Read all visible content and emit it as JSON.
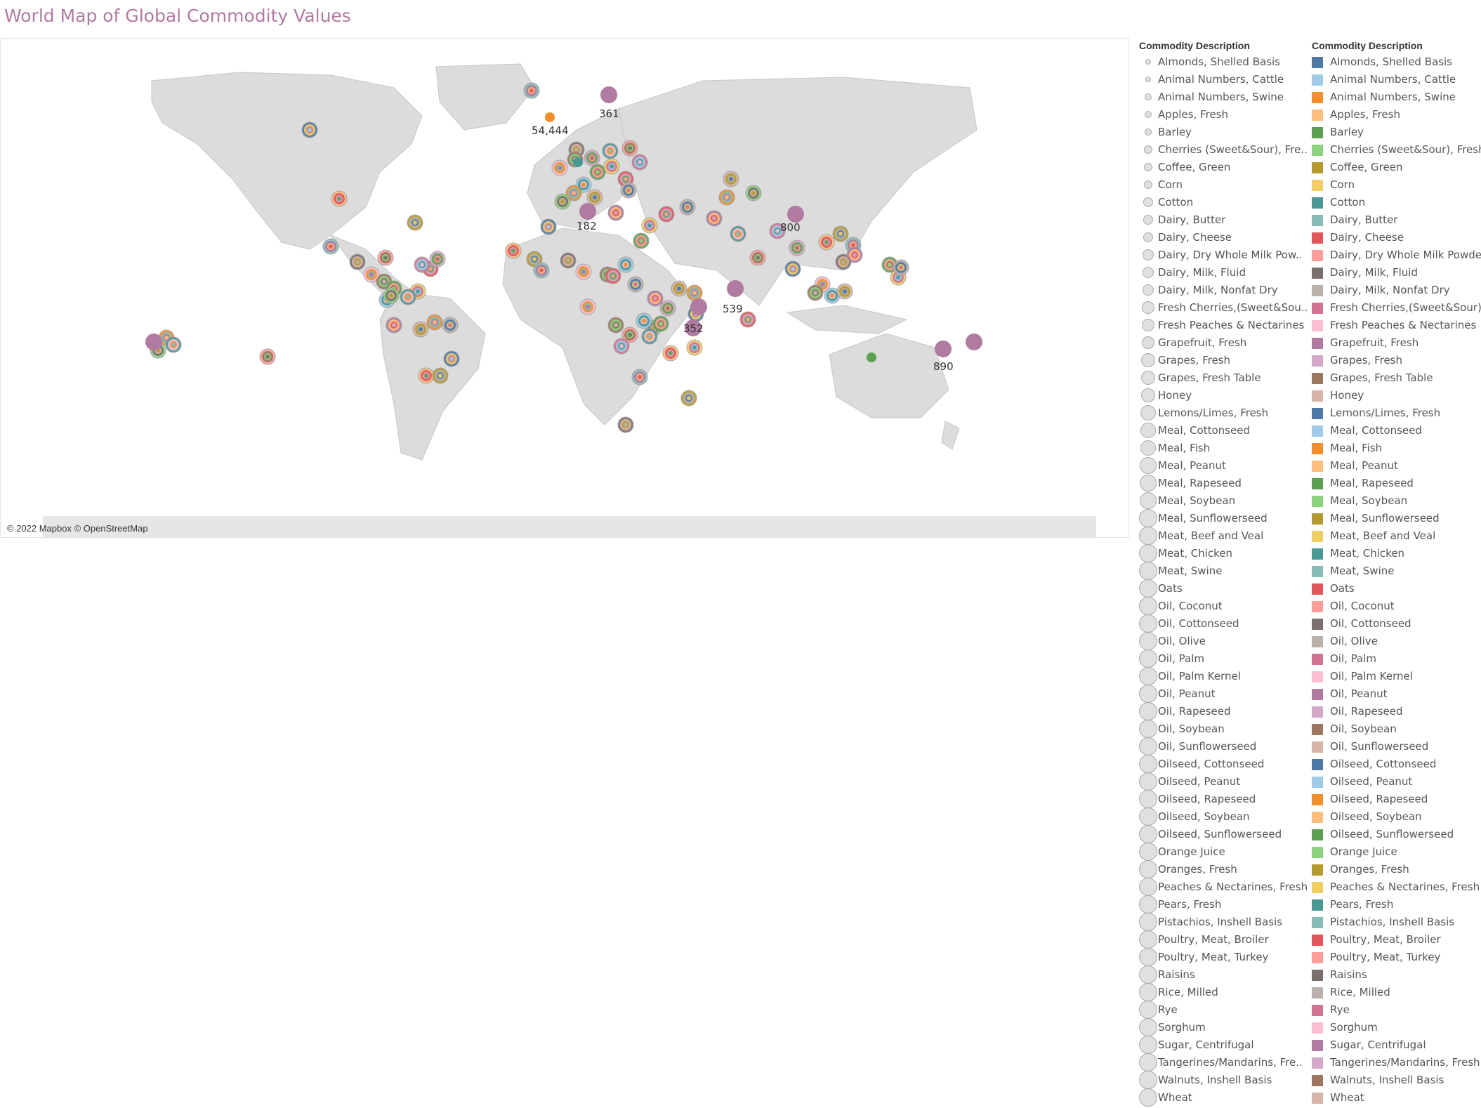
{
  "title": "World Map of Global Commodity Values",
  "attribution": "© 2022 Mapbox © OpenStreetMap",
  "map": {
    "callouts": [
      "54,444",
      "361",
      "182",
      "800",
      "539",
      "352",
      "890"
    ]
  },
  "legend": {
    "size_title": "Commodity Description",
    "color_title": "Commodity Description",
    "items": [
      {
        "label": "Almonds, Shelled Basis",
        "short": "Almonds, Shelled Basis",
        "color": "#4e79a7"
      },
      {
        "label": "Animal Numbers, Cattle",
        "short": "Animal Numbers, Cattle",
        "color": "#a0cbe8"
      },
      {
        "label": "Animal Numbers, Swine",
        "short": "Animal Numbers, Swine",
        "color": "#f28e2b"
      },
      {
        "label": "Apples, Fresh",
        "short": "Apples, Fresh",
        "color": "#ffbe7d"
      },
      {
        "label": "Barley",
        "short": "Barley",
        "color": "#59a14f"
      },
      {
        "label": "Cherries (Sweet&Sour), Fresh",
        "short": "Cherries (Sweet&Sour), Fre..",
        "color": "#8cd17d"
      },
      {
        "label": "Coffee, Green",
        "short": "Coffee, Green",
        "color": "#b6992d"
      },
      {
        "label": "Corn",
        "short": "Corn",
        "color": "#f1ce63"
      },
      {
        "label": "Cotton",
        "short": "Cotton",
        "color": "#499894"
      },
      {
        "label": "Dairy, Butter",
        "short": "Dairy, Butter",
        "color": "#86bcb6"
      },
      {
        "label": "Dairy, Cheese",
        "short": "Dairy, Cheese",
        "color": "#e15759"
      },
      {
        "label": "Dairy, Dry Whole Milk Powder",
        "short": "Dairy, Dry Whole Milk Pow..",
        "color": "#ff9d9a"
      },
      {
        "label": "Dairy, Milk, Fluid",
        "short": "Dairy, Milk, Fluid",
        "color": "#79706e"
      },
      {
        "label": "Dairy, Milk, Nonfat Dry",
        "short": "Dairy, Milk, Nonfat Dry",
        "color": "#bab0ac"
      },
      {
        "label": "Fresh Cherries,(Sweet&Sour)",
        "short": "Fresh Cherries,(Sweet&Sou..",
        "color": "#d37295"
      },
      {
        "label": "Fresh Peaches & Nectarines",
        "short": "Fresh Peaches & Nectarines",
        "color": "#fabfd2"
      },
      {
        "label": "Grapefruit, Fresh",
        "short": "Grapefruit, Fresh",
        "color": "#b07aa1"
      },
      {
        "label": "Grapes, Fresh",
        "short": "Grapes, Fresh",
        "color": "#d4a6c8"
      },
      {
        "label": "Grapes, Fresh Table",
        "short": "Grapes, Fresh Table",
        "color": "#9d7660"
      },
      {
        "label": "Honey",
        "short": "Honey",
        "color": "#d7b5a6"
      },
      {
        "label": "Lemons/Limes, Fresh",
        "short": "Lemons/Limes, Fresh",
        "color": "#4e79a7"
      },
      {
        "label": "Meal, Cottonseed",
        "short": "Meal, Cottonseed",
        "color": "#a0cbe8"
      },
      {
        "label": "Meal, Fish",
        "short": "Meal, Fish",
        "color": "#f28e2b"
      },
      {
        "label": "Meal, Peanut",
        "short": "Meal, Peanut",
        "color": "#ffbe7d"
      },
      {
        "label": "Meal, Rapeseed",
        "short": "Meal, Rapeseed",
        "color": "#59a14f"
      },
      {
        "label": "Meal, Soybean",
        "short": "Meal, Soybean",
        "color": "#8cd17d"
      },
      {
        "label": "Meal, Sunflowerseed",
        "short": "Meal, Sunflowerseed",
        "color": "#b6992d"
      },
      {
        "label": "Meat, Beef and Veal",
        "short": "Meat, Beef and Veal",
        "color": "#f1ce63"
      },
      {
        "label": "Meat, Chicken",
        "short": "Meat, Chicken",
        "color": "#499894"
      },
      {
        "label": "Meat, Swine",
        "short": "Meat, Swine",
        "color": "#86bcb6"
      },
      {
        "label": "Oats",
        "short": "Oats",
        "color": "#e15759"
      },
      {
        "label": "Oil, Coconut",
        "short": "Oil, Coconut",
        "color": "#ff9d9a"
      },
      {
        "label": "Oil, Cottonseed",
        "short": "Oil, Cottonseed",
        "color": "#79706e"
      },
      {
        "label": "Oil, Olive",
        "short": "Oil, Olive",
        "color": "#bab0ac"
      },
      {
        "label": "Oil, Palm",
        "short": "Oil, Palm",
        "color": "#d37295"
      },
      {
        "label": "Oil, Palm Kernel",
        "short": "Oil, Palm Kernel",
        "color": "#fabfd2"
      },
      {
        "label": "Oil, Peanut",
        "short": "Oil, Peanut",
        "color": "#b07aa1"
      },
      {
        "label": "Oil, Rapeseed",
        "short": "Oil, Rapeseed",
        "color": "#d4a6c8"
      },
      {
        "label": "Oil, Soybean",
        "short": "Oil, Soybean",
        "color": "#9d7660"
      },
      {
        "label": "Oil, Sunflowerseed",
        "short": "Oil, Sunflowerseed",
        "color": "#d7b5a6"
      },
      {
        "label": "Oilseed, Cottonseed",
        "short": "Oilseed, Cottonseed",
        "color": "#4e79a7"
      },
      {
        "label": "Oilseed, Peanut",
        "short": "Oilseed, Peanut",
        "color": "#a0cbe8"
      },
      {
        "label": "Oilseed, Rapeseed",
        "short": "Oilseed, Rapeseed",
        "color": "#f28e2b"
      },
      {
        "label": "Oilseed, Soybean",
        "short": "Oilseed, Soybean",
        "color": "#ffbe7d"
      },
      {
        "label": "Oilseed, Sunflowerseed",
        "short": "Oilseed, Sunflowerseed",
        "color": "#59a14f"
      },
      {
        "label": "Orange Juice",
        "short": "Orange Juice",
        "color": "#8cd17d"
      },
      {
        "label": "Oranges, Fresh",
        "short": "Oranges, Fresh",
        "color": "#b6992d"
      },
      {
        "label": "Peaches & Nectarines, Fresh",
        "short": "Peaches & Nectarines, Fresh",
        "color": "#f1ce63"
      },
      {
        "label": "Pears, Fresh",
        "short": "Pears, Fresh",
        "color": "#499894"
      },
      {
        "label": "Pistachios, Inshell Basis",
        "short": "Pistachios, Inshell Basis",
        "color": "#86bcb6"
      },
      {
        "label": "Poultry, Meat, Broiler",
        "short": "Poultry, Meat, Broiler",
        "color": "#e15759"
      },
      {
        "label": "Poultry, Meat, Turkey",
        "short": "Poultry, Meat, Turkey",
        "color": "#ff9d9a"
      },
      {
        "label": "Raisins",
        "short": "Raisins",
        "color": "#79706e"
      },
      {
        "label": "Rice, Milled",
        "short": "Rice, Milled",
        "color": "#bab0ac"
      },
      {
        "label": "Rye",
        "short": "Rye",
        "color": "#d37295"
      },
      {
        "label": "Sorghum",
        "short": "Sorghum",
        "color": "#fabfd2"
      },
      {
        "label": "Sugar, Centrifugal",
        "short": "Sugar, Centrifugal",
        "color": "#b07aa1"
      },
      {
        "label": "Tangerines/Mandarins, Fresh",
        "short": "Tangerines/Mandarins, Fre..",
        "color": "#d4a6c8"
      },
      {
        "label": "Walnuts, Inshell Basis",
        "short": "Walnuts, Inshell Basis",
        "color": "#9d7660"
      },
      {
        "label": "Wheat",
        "short": "Wheat",
        "color": "#d7b5a6"
      }
    ]
  }
}
